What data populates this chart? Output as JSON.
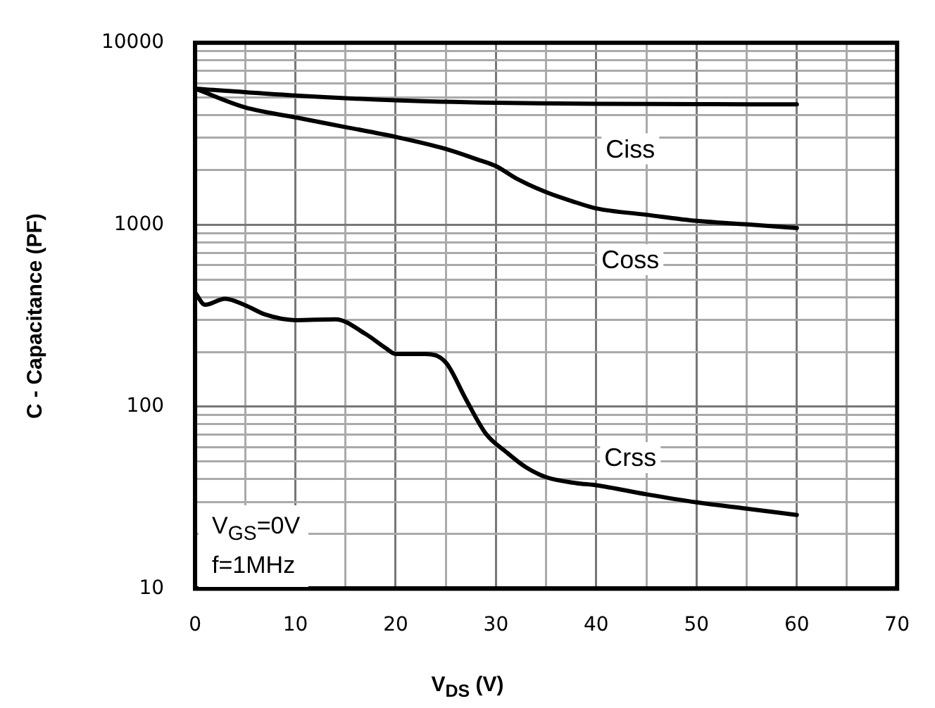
{
  "chart_data": {
    "type": "line",
    "xlabel": "V$_{DS}$ (V)",
    "ylabel": "C - Capacitance (PF)",
    "log": "y",
    "grid": true,
    "legend": false,
    "marker": "none",
    "line_style": "solid",
    "xlim": [
      0,
      70
    ],
    "xticks": [
      0,
      {
        "value": 5,
        "label": null
      },
      10,
      {
        "value": 15,
        "label": null
      },
      20,
      {
        "value": 25,
        "label": null
      },
      30,
      {
        "value": 35,
        "label": null
      },
      40,
      {
        "value": 45,
        "label": null
      },
      50,
      {
        "value": 55,
        "label": null
      },
      60,
      {
        "value": 65,
        "label": null
      },
      70
    ],
    "ylim": [
      10,
      10000
    ],
    "yticks": [
      10,
      {
        "value": 20,
        "label": null
      },
      {
        "value": 30,
        "label": null
      },
      {
        "value": 40,
        "label": null
      },
      {
        "value": 50,
        "label": null
      },
      {
        "value": 60,
        "label": null
      },
      {
        "value": 70,
        "label": null
      },
      {
        "value": 80,
        "label": null
      },
      {
        "value": 90,
        "label": null
      },
      100,
      {
        "value": 200,
        "label": null
      },
      {
        "value": 300,
        "label": null
      },
      {
        "value": 400,
        "label": null
      },
      {
        "value": 500,
        "label": null
      },
      {
        "value": 600,
        "label": null
      },
      {
        "value": 700,
        "label": null
      },
      {
        "value": 800,
        "label": null
      },
      {
        "value": 900,
        "label": null
      },
      1000,
      {
        "value": 2000,
        "label": null
      },
      {
        "value": 3000,
        "label": null
      },
      {
        "value": 4000,
        "label": null
      },
      {
        "value": 5000,
        "label": null
      },
      {
        "value": 6000,
        "label": null
      },
      {
        "value": 7000,
        "label": null
      },
      {
        "value": 8000,
        "label": null
      },
      {
        "value": 9000,
        "label": null
      },
      10000
    ],
    "series": [
      {
        "name": "Ciss",
        "color": "#000000",
        "x": [
          0,
          10,
          20,
          30,
          40,
          50,
          60
        ],
        "values": [
          5600,
          5130,
          4830,
          4680,
          4620,
          4600,
          4590
        ]
      },
      {
        "name": "Coss",
        "color": "#000000",
        "x": [
          0,
          5,
          10,
          15,
          20,
          25,
          28,
          30,
          32,
          35,
          38,
          40,
          45,
          50,
          55,
          60
        ],
        "values": [
          5600,
          4410,
          3890,
          3440,
          3040,
          2610,
          2300,
          2100,
          1800,
          1510,
          1325,
          1230,
          1135,
          1050,
          1005,
          960
        ]
      },
      {
        "name": "Crss",
        "color": "#000000",
        "x": [
          0,
          1,
          3,
          5,
          7,
          10,
          14,
          17,
          19,
          20,
          23,
          25,
          27,
          29,
          31,
          33,
          35,
          38,
          40,
          45,
          50,
          55,
          60
        ],
        "values": [
          424,
          363,
          392,
          361,
          321,
          299,
          302,
          251,
          210,
          195,
          195,
          175,
          110,
          71,
          56.5,
          46.4,
          41,
          38,
          37,
          33,
          29.8,
          27.5,
          25.4
        ]
      }
    ],
    "annotations": [
      "V$_{GS}$=0V",
      "f=1MHz"
    ]
  }
}
